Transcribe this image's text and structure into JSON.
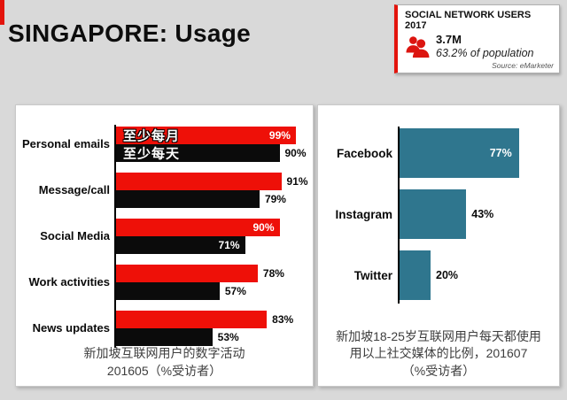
{
  "slide": {
    "title": "SINGAPORE: Usage"
  },
  "info_box": {
    "title": "SOCIAL NETWORK USERS 2017",
    "value": "3.7M",
    "subtitle": "63.2% of population",
    "source": "Source: eMarketer"
  },
  "colors": {
    "background": "#d9d9d9",
    "accent_red": "#ee1008",
    "bar_black": "#0b0b0b",
    "bar_teal": "#2f768e"
  },
  "chart_data": [
    {
      "type": "bar",
      "orientation": "horizontal",
      "title": "新加坡互联网用户的数字活动 201605（%受访者）",
      "categories": [
        "Personal emails",
        "Message/call",
        "Social Media",
        "Work activities",
        "News updates"
      ],
      "series": [
        {
          "name": "至少每月",
          "color": "#ee1008",
          "values": [
            99,
            91,
            90,
            78,
            83
          ],
          "value_labels": [
            "99%",
            "91%",
            "90%",
            "78%",
            "83%"
          ]
        },
        {
          "name": "至少每天",
          "color": "#0b0b0b",
          "values": [
            90,
            79,
            71,
            57,
            53
          ],
          "value_labels": [
            "90%",
            "79%",
            "71%",
            "57%",
            "53%"
          ]
        }
      ],
      "xlim": [
        0,
        100
      ],
      "grid": false,
      "legend_position": "inside-first-bars",
      "caption_lines": [
        "新加坡互联网用户的数字活动",
        "201605（%受访者）"
      ]
    },
    {
      "type": "bar",
      "orientation": "horizontal",
      "title": "新加坡18-25岁互联网用户每天都使用用以上社交媒体的比例，201607（%受访者）",
      "categories": [
        "Facebook",
        "Instagram",
        "Twitter"
      ],
      "values": [
        77,
        43,
        20
      ],
      "value_labels": [
        "77%",
        "43%",
        "20%"
      ],
      "bar_color": "#2f768e",
      "xlim": [
        0,
        100
      ],
      "grid": false,
      "caption_lines": [
        "新加坡18-25岁互联网用户每天都使用",
        "用以上社交媒体的比例，201607",
        "（%受访者）"
      ]
    }
  ]
}
